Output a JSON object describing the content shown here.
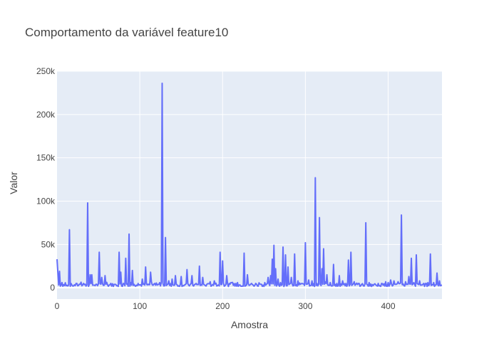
{
  "chart_data": {
    "type": "line",
    "title": "Comportamento da variável feature10",
    "xlabel": "Amostra",
    "ylabel": "Valor",
    "xlim": [
      0,
      465
    ],
    "ylim": [
      -13000,
      250000
    ],
    "grid": true,
    "legend": "none",
    "colors": {
      "plot_bg": "#e5ecf6",
      "line": "#636efa",
      "grid": "#ffffff",
      "text": "#444444"
    },
    "x_ticks": [
      0,
      100,
      200,
      300,
      400
    ],
    "x_tick_labels": [
      "0",
      "100",
      "200",
      "300",
      "400"
    ],
    "y_ticks": [
      0,
      50000,
      100000,
      150000,
      200000,
      250000
    ],
    "y_tick_labels": [
      "0",
      "50k",
      "100k",
      "150k",
      "200k",
      "250k"
    ],
    "baseline": 1500,
    "peaks": [
      [
        0,
        33000
      ],
      [
        1,
        18000
      ],
      [
        3,
        19000
      ],
      [
        6,
        6000
      ],
      [
        12,
        3000
      ],
      [
        15,
        67000
      ],
      [
        19,
        2000
      ],
      [
        24,
        5000
      ],
      [
        28,
        4000
      ],
      [
        32,
        5000
      ],
      [
        37,
        98000
      ],
      [
        40,
        15000
      ],
      [
        42,
        15000
      ],
      [
        47,
        4000
      ],
      [
        51,
        41000
      ],
      [
        54,
        12000
      ],
      [
        58,
        14000
      ],
      [
        65,
        5000
      ],
      [
        70,
        4000
      ],
      [
        75,
        41000
      ],
      [
        77,
        18000
      ],
      [
        80,
        5000
      ],
      [
        83,
        34000
      ],
      [
        87,
        62000
      ],
      [
        91,
        20000
      ],
      [
        96,
        3000
      ],
      [
        103,
        10000
      ],
      [
        107,
        24000
      ],
      [
        113,
        18000
      ],
      [
        118,
        5000
      ],
      [
        124,
        6000
      ],
      [
        127,
        236000
      ],
      [
        131,
        58000
      ],
      [
        135,
        8000
      ],
      [
        139,
        10000
      ],
      [
        143,
        14000
      ],
      [
        150,
        13000
      ],
      [
        157,
        21000
      ],
      [
        163,
        14000
      ],
      [
        168,
        5000
      ],
      [
        172,
        25000
      ],
      [
        176,
        12000
      ],
      [
        181,
        4000
      ],
      [
        185,
        7000
      ],
      [
        190,
        8000
      ],
      [
        197,
        41000
      ],
      [
        200,
        31000
      ],
      [
        205,
        14000
      ],
      [
        210,
        6000
      ],
      [
        218,
        6000
      ],
      [
        226,
        40000
      ],
      [
        230,
        15000
      ],
      [
        235,
        5000
      ],
      [
        240,
        5000
      ],
      [
        246,
        4000
      ],
      [
        251,
        6000
      ],
      [
        255,
        12000
      ],
      [
        258,
        14000
      ],
      [
        260,
        33000
      ],
      [
        262,
        49000
      ],
      [
        264,
        22000
      ],
      [
        267,
        10000
      ],
      [
        270,
        6000
      ],
      [
        273,
        47000
      ],
      [
        276,
        38000
      ],
      [
        279,
        24000
      ],
      [
        283,
        12000
      ],
      [
        287,
        39000
      ],
      [
        291,
        8000
      ],
      [
        296,
        5000
      ],
      [
        300,
        52000
      ],
      [
        304,
        9000
      ],
      [
        308,
        8000
      ],
      [
        312,
        127000
      ],
      [
        317,
        81000
      ],
      [
        320,
        22000
      ],
      [
        322,
        45000
      ],
      [
        326,
        15000
      ],
      [
        330,
        6000
      ],
      [
        334,
        27000
      ],
      [
        338,
        5000
      ],
      [
        341,
        14000
      ],
      [
        345,
        8000
      ],
      [
        349,
        5000
      ],
      [
        352,
        32000
      ],
      [
        355,
        41000
      ],
      [
        359,
        7000
      ],
      [
        364,
        5000
      ],
      [
        368,
        4000
      ],
      [
        373,
        75000
      ],
      [
        377,
        6000
      ],
      [
        383,
        4000
      ],
      [
        388,
        5000
      ],
      [
        392,
        5000
      ],
      [
        397,
        7000
      ],
      [
        400,
        6000
      ],
      [
        403,
        9000
      ],
      [
        407,
        8000
      ],
      [
        412,
        7000
      ],
      [
        416,
        84000
      ],
      [
        421,
        7000
      ],
      [
        425,
        13000
      ],
      [
        428,
        34000
      ],
      [
        431,
        6000
      ],
      [
        434,
        38000
      ],
      [
        438,
        8000
      ],
      [
        443,
        5000
      ],
      [
        448,
        6000
      ],
      [
        451,
        39000
      ],
      [
        455,
        6000
      ],
      [
        459,
        17000
      ],
      [
        462,
        8000
      ],
      [
        465,
        3000
      ]
    ]
  }
}
